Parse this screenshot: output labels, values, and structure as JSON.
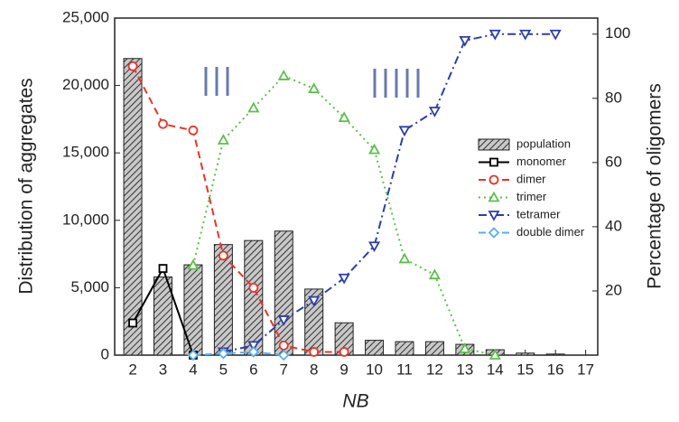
{
  "chart_data": {
    "type": "bar",
    "x_label": "NB",
    "y_label": "Distribution of aggregates",
    "y2_label": "Percentage of oligomers",
    "x": [
      2,
      3,
      4,
      5,
      6,
      7,
      8,
      9,
      10,
      11,
      12,
      13,
      14,
      15,
      16,
      17
    ],
    "xlim": [
      1.4,
      17.4
    ],
    "xticks": [
      2,
      3,
      4,
      5,
      6,
      7,
      8,
      9,
      10,
      11,
      12,
      13,
      14,
      15,
      16,
      17
    ],
    "ylim": [
      0,
      25000
    ],
    "yticks": [
      0,
      {
        "value": 5000,
        "label": "5,000"
      },
      {
        "value": 10000,
        "label": "10,000"
      },
      {
        "value": 15000,
        "label": "15,000"
      },
      {
        "value": 20000,
        "label": "20,000"
      },
      {
        "value": 25000,
        "label": "25,000"
      }
    ],
    "y2lim": [
      0,
      105
    ],
    "y2ticks": [
      20,
      40,
      60,
      80,
      100
    ],
    "legend": "right",
    "series": [
      {
        "name": "population",
        "type": "bar",
        "color": "#555555",
        "values": [
          22000,
          5800,
          6700,
          8200,
          8500,
          9200,
          4900,
          2400,
          1100,
          1000,
          1000,
          800,
          400,
          150,
          80,
          0
        ]
      },
      {
        "name": "monomer",
        "type": "line",
        "axis": "y2",
        "color": "#000000",
        "dash": "solid",
        "marker": "square",
        "values": [
          10,
          27,
          0,
          null,
          null,
          null,
          null,
          null,
          null,
          null,
          null,
          null,
          null,
          null,
          null,
          null
        ]
      },
      {
        "name": "dimer",
        "type": "line",
        "axis": "y2",
        "color": "#e8342a",
        "dash": "dashed",
        "marker": "circle",
        "values": [
          90,
          72,
          70,
          31,
          21,
          3,
          1,
          1,
          null,
          null,
          null,
          null,
          null,
          null,
          null,
          null
        ]
      },
      {
        "name": "trimer",
        "type": "line",
        "axis": "y2",
        "color": "#5cbf4a",
        "dash": "dotted",
        "marker": "triangle",
        "values": [
          null,
          null,
          28,
          67,
          77,
          87,
          83,
          74,
          64,
          30,
          25,
          2,
          0,
          null,
          null,
          null
        ]
      },
      {
        "name": "tetramer",
        "type": "line",
        "axis": "y2",
        "color": "#2b3ea8",
        "dash": "dashdot",
        "marker": "triangle-down",
        "values": [
          null,
          null,
          null,
          1,
          3,
          11,
          17,
          24,
          34,
          70,
          76,
          98,
          100,
          100,
          100,
          null
        ]
      },
      {
        "name": "double dimer",
        "type": "line",
        "axis": "y2",
        "color": "#5aaee8",
        "dash": "dashed",
        "marker": "diamond",
        "values": [
          null,
          null,
          0,
          0.5,
          1,
          0,
          null,
          null,
          null,
          null,
          null,
          null,
          null,
          null,
          null,
          null
        ]
      }
    ]
  }
}
